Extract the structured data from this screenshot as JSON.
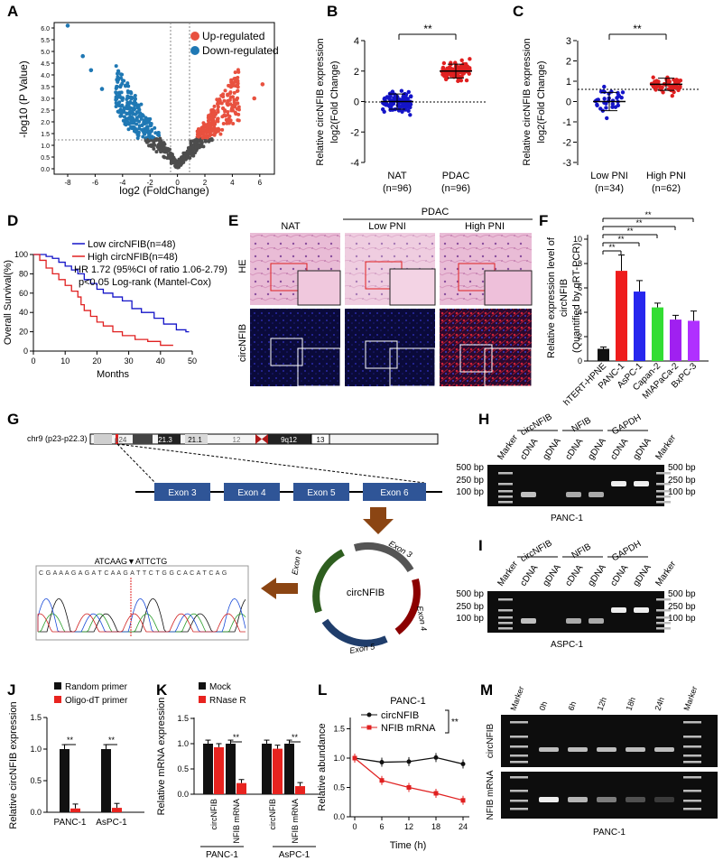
{
  "panels": {
    "A": "A",
    "B": "B",
    "C": "C",
    "D": "D",
    "E": "E",
    "F": "F",
    "G": "G",
    "H": "H",
    "I": "I",
    "J": "J",
    "K": "K",
    "L": "L",
    "M": "M"
  },
  "colors": {
    "up": "#e8513f",
    "down": "#1f78b4",
    "ns": "#4d4d4d",
    "blue": "#1414c8",
    "red": "#e02020",
    "black": "#111111",
    "bar_red": "#e8231f",
    "gel_band": "#e8e8e8"
  },
  "volcano": {
    "ylabel": "-log10 (P Value)",
    "xlabel": "log2 (FoldChange)",
    "legend": {
      "up": "Up-regulated",
      "down": "Down-regulated"
    },
    "x_ticks": [
      "-8",
      "-6",
      "-4",
      "-2",
      "0",
      "2",
      "4",
      "6"
    ],
    "y_ticks": [
      "0.0",
      "0.5",
      "1.0",
      "1.5",
      "2.0",
      "2.5",
      "3.0",
      "3.5",
      "4.0",
      "4.5",
      "5.0",
      "5.5",
      "6.0"
    ]
  },
  "panelB": {
    "ylabel1": "Relative circNFIB expression",
    "ylabel2": "log2(Fold Change)",
    "groups": [
      {
        "name": "NAT",
        "n": "(n=96)"
      },
      {
        "name": "PDAC",
        "n": "(n=96)"
      }
    ],
    "sig": "**",
    "y_ticks": [
      "4",
      "2",
      "0",
      "-2",
      "-4"
    ]
  },
  "panelC": {
    "ylabel1": "Relative circNFIB expression",
    "ylabel2": "log2(Fold Change)",
    "groups": [
      {
        "name": "Low PNI",
        "n": "(n=34)"
      },
      {
        "name": "High PNI",
        "n": "(n=62)"
      }
    ],
    "sig": "**",
    "y_ticks": [
      "3",
      "2",
      "1",
      "0",
      "-1",
      "-2",
      "-3"
    ]
  },
  "panelD": {
    "ylabel": "Overall Survival(%)",
    "xlabel": "Months",
    "legend_low": "Low circNFIB(n=48)",
    "legend_high": "High circNFIB(n=48)",
    "stat1": "HR 1.72 (95%CI of ratio 1.06-2.79)",
    "stat2": "p<0.05 Log-rank (Mantel-Cox)",
    "x_ticks": [
      "0",
      "10",
      "20",
      "30",
      "40",
      "50"
    ],
    "y_ticks": [
      "100",
      "80",
      "60",
      "40",
      "20",
      "0"
    ]
  },
  "panelE": {
    "col_nat": "NAT",
    "col_pdac": "PDAC",
    "col_low": "Low PNI",
    "col_high": "High PNI",
    "row_he": "HE",
    "row_circ": "circNFIB"
  },
  "chart_data": [
    {
      "type": "bar",
      "id": "F",
      "ylabel": "Relative expression level of circNFIB (Quantified by qRT-PCR)",
      "categories": [
        "hTERT-HPNE",
        "PANC-1",
        "AsPC-1",
        "Capan-2",
        "MIAPaCa-2",
        "BxPC-3"
      ],
      "values": [
        1.0,
        7.4,
        5.7,
        4.4,
        3.4,
        3.3
      ],
      "errors": [
        0.15,
        1.3,
        0.9,
        0.35,
        0.35,
        0.8
      ],
      "bar_colors": [
        "#111111",
        "#ee1c1c",
        "#2626ee",
        "#33dd33",
        "#a020f0",
        "#b030ff"
      ],
      "ylim": [
        0,
        10
      ],
      "y_ticks": [
        "0",
        "2",
        "4",
        "6",
        "8",
        "10"
      ],
      "sig": "**"
    },
    {
      "type": "bar",
      "id": "J",
      "ylabel": "Relative circNFIB expression",
      "categories": [
        "PANC-1",
        "AsPC-1"
      ],
      "series": [
        {
          "name": "Random primer",
          "values": [
            1.0,
            1.0
          ]
        },
        {
          "name": "Oligo-dT primer",
          "values": [
            0.06,
            0.07
          ]
        }
      ],
      "ylim": [
        0,
        1.5
      ],
      "y_ticks": [
        "0.0",
        "0.5",
        "1.0",
        "1.5"
      ],
      "sig": "**"
    },
    {
      "type": "bar",
      "id": "K",
      "ylabel": "Relative mRNA expression",
      "categories": [
        "circNFIB",
        "NFIB mRNA",
        "circNFIB",
        "NFIB mRNA"
      ],
      "groups": [
        "PANC-1",
        "AsPC-1"
      ],
      "series": [
        {
          "name": "Mock",
          "values": [
            1.0,
            1.0,
            1.0,
            1.0
          ]
        },
        {
          "name": "RNase R",
          "values": [
            0.93,
            0.22,
            0.9,
            0.16
          ]
        }
      ],
      "ylim": [
        0,
        1.5
      ],
      "y_ticks": [
        "0.0",
        "0.5",
        "1.0",
        "1.5"
      ],
      "sig": "**"
    },
    {
      "type": "line",
      "id": "L",
      "title": "PANC-1",
      "ylabel": "Relative abundance",
      "xlabel": "Time (h)",
      "x": [
        0,
        6,
        12,
        18,
        24
      ],
      "series": [
        {
          "name": "circNFIB",
          "values": [
            1.0,
            0.93,
            0.94,
            1.01,
            0.9
          ]
        },
        {
          "name": "NFIB mRNA",
          "values": [
            1.0,
            0.62,
            0.5,
            0.4,
            0.28
          ]
        }
      ],
      "ylim": [
        0,
        1.5
      ],
      "y_ticks": [
        "0.0",
        "0.5",
        "1.0",
        "1.5"
      ],
      "x_ticks": [
        "0",
        "6",
        "12",
        "18",
        "24"
      ],
      "sig": "**"
    }
  ],
  "panelG": {
    "chrom": "chr9 (p23-p22.3)",
    "bands": [
      "p24",
      "21.3",
      "21.1",
      "12",
      "9q12",
      "13"
    ],
    "exons": [
      "Exon 3",
      "Exon 4",
      "Exon 5",
      "Exon 6"
    ],
    "circ": "circNFIB",
    "junction": "ATCAAG▼ATTCTG",
    "seq": "C G A A A G A G A T C A A G A T T C T G G C A C A T C A G"
  },
  "gels": {
    "H": {
      "cell": "PANC-1"
    },
    "I": {
      "cell": "ASPC-1"
    },
    "lanes": [
      "Marker",
      "cDNA",
      "gDNA",
      "cDNA",
      "gDNA",
      "cDNA",
      "gDNA",
      "Marker"
    ],
    "groups": [
      "circNFIB",
      "NFIB",
      "GAPDH"
    ],
    "sizes": [
      "500 bp",
      "250 bp",
      "100 bp"
    ]
  },
  "panelM": {
    "lanes": [
      "Marker",
      "0h",
      "6h",
      "12h",
      "18h",
      "24h",
      "Marker"
    ],
    "row1": "circNFIB",
    "row2": "NFIB mRNA",
    "cell": "PANC-1"
  }
}
